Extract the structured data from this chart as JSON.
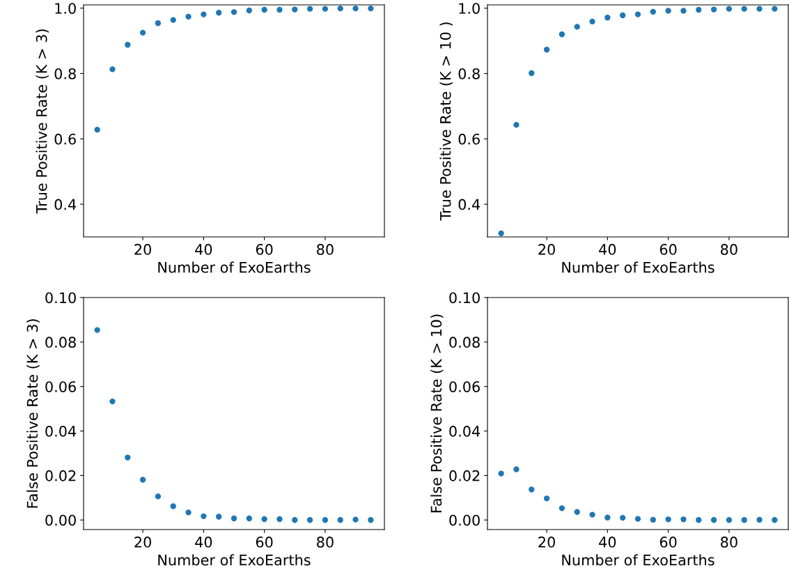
{
  "chart_data": [
    {
      "type": "scatter",
      "xlabel": "Number of ExoEarths",
      "ylabel": "True Positive Rate (K > 3)",
      "x": [
        5,
        10,
        15,
        20,
        25,
        30,
        35,
        40,
        45,
        50,
        55,
        60,
        65,
        70,
        75,
        80,
        85,
        90,
        95
      ],
      "xlim": [
        0.5,
        99.5
      ],
      "xticks": [
        20,
        40,
        60,
        80
      ],
      "ylim": [
        0.3,
        1.01
      ],
      "yticks": [
        {
          "value": 0.4,
          "label": "0.4"
        },
        {
          "value": 0.6,
          "label": "0.6"
        },
        {
          "value": 0.8,
          "label": "0.8"
        },
        {
          "value": 1.0,
          "label": "1.0"
        }
      ],
      "grid": false,
      "marker": "circle",
      "series": [
        {
          "color": "#1f77b4",
          "values": [
            0.628,
            0.813,
            0.888,
            0.925,
            0.954,
            0.964,
            0.974,
            0.981,
            0.986,
            0.988,
            0.993,
            0.995,
            0.995,
            0.996,
            0.998,
            0.998,
            0.999,
            0.999,
            0.999
          ]
        }
      ]
    },
    {
      "type": "scatter",
      "xlabel": "Number of ExoEarths",
      "ylabel": "True Positive Rate (K > 10 )",
      "x": [
        5,
        10,
        15,
        20,
        25,
        30,
        35,
        40,
        45,
        50,
        55,
        60,
        65,
        70,
        75,
        80,
        85,
        90,
        95
      ],
      "xlim": [
        0.5,
        99.5
      ],
      "xticks": [
        20,
        40,
        60,
        80
      ],
      "ylim": [
        0.3,
        1.01
      ],
      "yticks": [
        {
          "value": 0.4,
          "label": "0.4"
        },
        {
          "value": 0.6,
          "label": "0.6"
        },
        {
          "value": 0.8,
          "label": "0.8"
        },
        {
          "value": 1.0,
          "label": "1.0"
        }
      ],
      "grid": false,
      "marker": "circle",
      "series": [
        {
          "color": "#1f77b4",
          "values": [
            0.311,
            0.643,
            0.801,
            0.873,
            0.92,
            0.943,
            0.959,
            0.971,
            0.978,
            0.981,
            0.989,
            0.992,
            0.992,
            0.995,
            0.996,
            0.998,
            0.998,
            0.998,
            0.998
          ]
        }
      ]
    },
    {
      "type": "scatter",
      "xlabel": "Number of ExoEarths",
      "ylabel": "False Positive Rate (K > 3)",
      "x": [
        5,
        10,
        15,
        20,
        25,
        30,
        35,
        40,
        45,
        50,
        55,
        60,
        65,
        70,
        75,
        80,
        85,
        90,
        95
      ],
      "xlim": [
        0.5,
        99.5
      ],
      "xticks": [
        20,
        40,
        60,
        80
      ],
      "ylim": [
        -0.0043,
        0.1
      ],
      "yticks": [
        {
          "value": 0,
          "label": "0.00"
        },
        {
          "value": 0.02,
          "label": "0.02"
        },
        {
          "value": 0.04,
          "label": "0.04"
        },
        {
          "value": 0.06,
          "label": "0.06"
        },
        {
          "value": 0.08,
          "label": "0.08"
        },
        {
          "value": 0.1,
          "label": "0.10"
        }
      ],
      "grid": false,
      "marker": "circle",
      "series": [
        {
          "color": "#1f77b4",
          "values": [
            0.0854,
            0.0533,
            0.0281,
            0.0181,
            0.0106,
            0.0062,
            0.0034,
            0.0017,
            0.0015,
            0.0007,
            0.0007,
            0.0004,
            0.0004,
            0,
            0,
            0,
            0,
            0.0002,
            0
          ]
        }
      ]
    },
    {
      "type": "scatter",
      "xlabel": "Number of ExoEarths",
      "ylabel": "False Positive Rate (K > 10)",
      "x": [
        5,
        10,
        15,
        20,
        25,
        30,
        35,
        40,
        45,
        50,
        55,
        60,
        65,
        70,
        75,
        80,
        85,
        90,
        95
      ],
      "xlim": [
        0.5,
        99.5
      ],
      "xticks": [
        20,
        40,
        60,
        80
      ],
      "ylim": [
        -0.0043,
        0.1
      ],
      "yticks": [
        {
          "value": 0,
          "label": "0.00"
        },
        {
          "value": 0.02,
          "label": "0.02"
        },
        {
          "value": 0.04,
          "label": "0.04"
        },
        {
          "value": 0.06,
          "label": "0.06"
        },
        {
          "value": 0.08,
          "label": "0.08"
        },
        {
          "value": 0.1,
          "label": "0.10"
        }
      ],
      "grid": false,
      "marker": "circle",
      "series": [
        {
          "color": "#1f77b4",
          "values": [
            0.0209,
            0.0228,
            0.0137,
            0.0097,
            0.0053,
            0.0036,
            0.0024,
            0.0011,
            0.001,
            0.0005,
            0.0001,
            0.0003,
            0.0003,
            0,
            0,
            0,
            0,
            0.0001,
            0
          ]
        }
      ]
    }
  ]
}
